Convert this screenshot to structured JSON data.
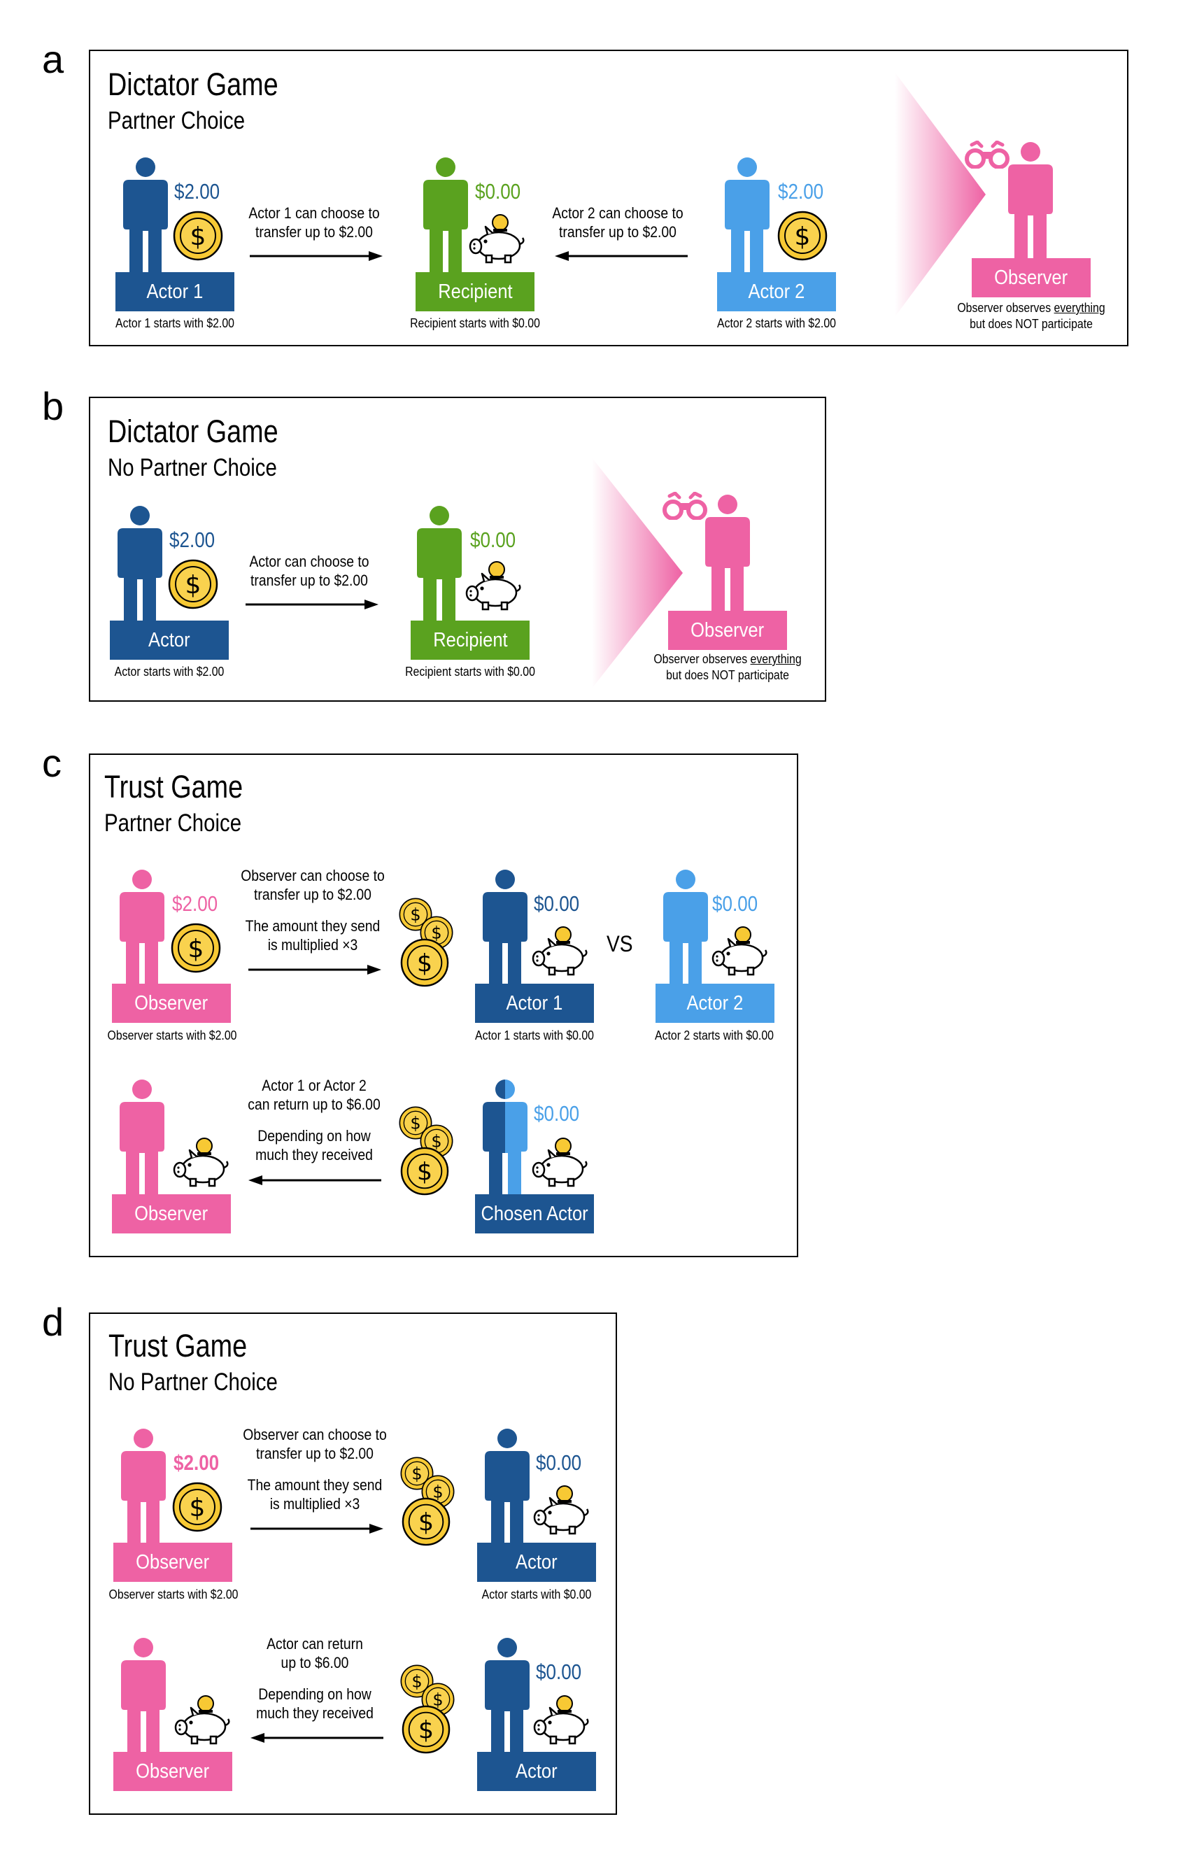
{
  "colors": {
    "dark_blue": "#1d5591",
    "light_blue": "#4aa0e8",
    "green": "#5aa21f",
    "pink": "#ee62a4",
    "coin": "#f7c934"
  },
  "icons": [
    "person-icon",
    "coin-icon",
    "piggy-bank-icon",
    "coin-stack-icon",
    "binoculars-icon",
    "arrow-icon"
  ],
  "a": {
    "letter": "a",
    "title": "Dictator Game",
    "subtitle": "Partner Choice",
    "actor1": {
      "amount": "$2.00",
      "label": "Actor 1",
      "caption": "Actor 1 starts with $2.00"
    },
    "recipient": {
      "amount": "$0.00",
      "label": "Recipient",
      "caption": "Recipient starts with $0.00"
    },
    "actor2": {
      "amount": "$2.00",
      "label": "Actor 2",
      "caption": "Actor 2 starts with $2.00"
    },
    "instr1": [
      "Actor 1 can choose to",
      "transfer up to $2.00"
    ],
    "instr2": [
      "Actor 2 can choose to",
      "transfer up to $2.00"
    ],
    "observer": {
      "label": "Observer",
      "caption1_pre": "Observer observes ",
      "caption1_u": "everything",
      "caption2": "but does NOT participate"
    }
  },
  "b": {
    "letter": "b",
    "title": "Dictator Game",
    "subtitle": "No Partner Choice",
    "actor": {
      "amount": "$2.00",
      "label": "Actor",
      "caption": "Actor starts with $2.00"
    },
    "recipient": {
      "amount": "$0.00",
      "label": "Recipient",
      "caption": "Recipient starts with $0.00"
    },
    "instr": [
      "Actor can choose to",
      "transfer up to $2.00"
    ],
    "observer": {
      "label": "Observer",
      "caption1_pre": "Observer observes ",
      "caption1_u": "everything",
      "caption2": "but does NOT participate"
    }
  },
  "c": {
    "letter": "c",
    "title": "Trust Game",
    "subtitle": "Partner Choice",
    "observer": {
      "amount": "$2.00",
      "label": "Observer",
      "caption": "Observer starts with $2.00"
    },
    "instr_send": [
      "Observer can choose to",
      "transfer up to $2.00",
      "The amount they send",
      "is multiplied ×3"
    ],
    "actor1": {
      "amount": "$0.00",
      "label": "Actor 1",
      "caption": "Actor 1 starts with $0.00"
    },
    "vs": "VS",
    "actor2": {
      "amount": "$0.00",
      "label": "Actor 2",
      "caption": "Actor 2 starts with $0.00"
    },
    "instr_return": [
      "Actor 1 or Actor 2",
      "can return up to $6.00",
      "Depending on how",
      "much they received"
    ],
    "observer2": {
      "label": "Observer"
    },
    "chosen": {
      "amount": "$0.00",
      "label": "Chosen Actor"
    }
  },
  "d": {
    "letter": "d",
    "title": "Trust Game",
    "subtitle": "No Partner Choice",
    "observer": {
      "amount": "$2.00",
      "label": "Observer",
      "caption": "Observer starts with $2.00"
    },
    "instr_send": [
      "Observer can choose to",
      "transfer up to $2.00",
      "The amount they send",
      "is multiplied ×3"
    ],
    "actor": {
      "amount": "$0.00",
      "label": "Actor",
      "caption": "Actor starts with $0.00"
    },
    "instr_return": [
      "Actor can return",
      "up to $6.00",
      "Depending on how",
      "much they received"
    ],
    "observer2": {
      "label": "Observer"
    },
    "actor2": {
      "amount": "$0.00",
      "label": "Actor"
    }
  }
}
